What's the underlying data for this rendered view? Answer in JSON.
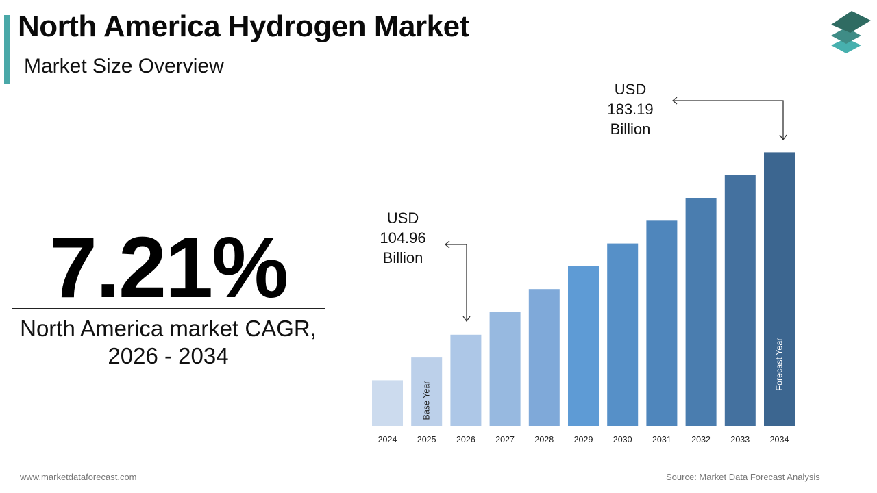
{
  "header": {
    "title": "North America Hydrogen Market",
    "subtitle": "Market Size Overview",
    "accent_color": "#4aa8a8"
  },
  "logo": {
    "icon": "stacked-layers-icon",
    "colors": [
      "#2f6b62",
      "#3f8c86",
      "#47b0ae"
    ]
  },
  "cagr": {
    "value": "7.21%",
    "label_line1": "North America market CAGR,",
    "label_line2": "2026 - 2034"
  },
  "callouts": {
    "start": {
      "line1": "USD",
      "line2": "104.96",
      "line3": "Billion",
      "year": "2026"
    },
    "end": {
      "line1": "USD",
      "line2": "183.19",
      "line3": "Billion",
      "year": "2034"
    }
  },
  "chart_data": {
    "type": "bar",
    "title": "",
    "xlabel": "",
    "ylabel": "",
    "grid": false,
    "legend": "none",
    "categories": [
      "2024",
      "2025",
      "2026",
      "2027",
      "2028",
      "2029",
      "2030",
      "2031",
      "2032",
      "2033",
      "2034"
    ],
    "values": [
      null,
      null,
      104.96,
      null,
      null,
      null,
      null,
      null,
      null,
      null,
      183.19
    ],
    "relative_heights": [
      2,
      3,
      4,
      5,
      6,
      7,
      8,
      9,
      10,
      11,
      12
    ],
    "unit": "USD Billion",
    "bar_colors": [
      "#ccdbee",
      "#bcd0ea",
      "#adc7e7",
      "#97b9e0",
      "#7fa9d9",
      "#5e9bd5",
      "#5690c8",
      "#4f86bc",
      "#4a7daf",
      "#44719f",
      "#3c6690"
    ],
    "bar_annotations": {
      "2025": "Base Year",
      "2034": "Forecast Year"
    },
    "annotation_colors": {
      "2025": "#222222",
      "2034": "#ffffff"
    }
  },
  "footer": {
    "website": "www.marketdataforecast.com",
    "source": "Source: Market Data Forecast Analysis"
  }
}
